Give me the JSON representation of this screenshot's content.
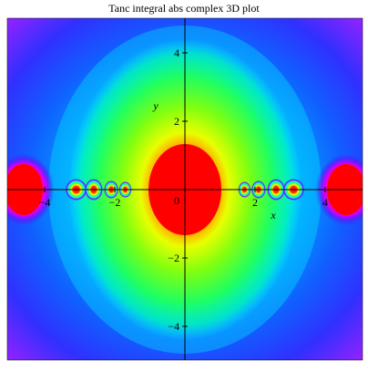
{
  "chart_data": {
    "type": "heatmap",
    "title": "Tanc integral  abs complex 3D plot",
    "xlabel": "x",
    "ylabel": "y",
    "xlim": [
      -5,
      5
    ],
    "ylim": [
      -5,
      5
    ],
    "x_ticks": [
      -4,
      -2,
      2,
      4
    ],
    "y_ticks": [
      4,
      2,
      -2,
      -4
    ],
    "origin_label": "0",
    "colormap": "hue (red-yellow-green-cyan-blue-magenta)",
    "grid": false,
    "legend": "none",
    "hotspots": [
      {
        "x": -4.6,
        "y": 0
      },
      {
        "x": -3.1,
        "y": 0
      },
      {
        "x": -2.6,
        "y": 0
      },
      {
        "x": -2.1,
        "y": 0
      },
      {
        "x": -1.7,
        "y": 0
      },
      {
        "x": 0,
        "y": 0
      },
      {
        "x": 1.7,
        "y": 0
      },
      {
        "x": 2.1,
        "y": 0
      },
      {
        "x": 2.6,
        "y": 0
      },
      {
        "x": 3.1,
        "y": 0
      },
      {
        "x": 4.6,
        "y": 0
      }
    ],
    "colors": {
      "hot": "#ff0000",
      "warm": "#ffff00",
      "mid": "#00ff00",
      "cool": "#00ffff",
      "cold": "#0000ff",
      "edge": "#b000ff"
    }
  }
}
